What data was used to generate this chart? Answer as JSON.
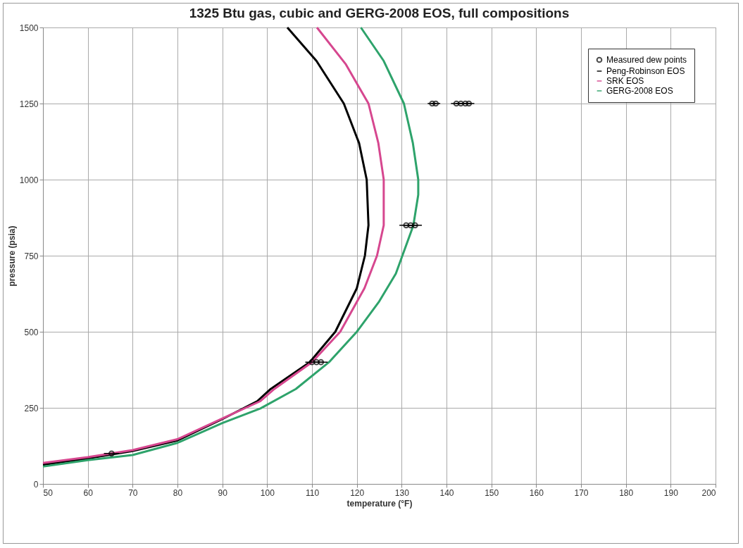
{
  "chart_data": {
    "type": "line",
    "title": "1325 Btu gas, cubic and GERG-2008 EOS, full compositions",
    "xlabel": "temperature (°F)",
    "ylabel": "pressure (psia)",
    "xlim": [
      50,
      200
    ],
    "xticks": [
      50,
      60,
      70,
      80,
      90,
      100,
      110,
      120,
      130,
      140,
      150,
      160,
      170,
      180,
      190,
      200
    ],
    "ylim": [
      0,
      1500
    ],
    "yticks": [
      0,
      250,
      500,
      750,
      1000,
      1250,
      1500
    ],
    "grid": true,
    "legend": "top right",
    "series": [
      {
        "name": "Measured dew points",
        "type": "scatter",
        "marker": "circle",
        "color": "#000000",
        "x": [
          65.3,
          110,
          111,
          112,
          131,
          132,
          133,
          136.8,
          137.6,
          142.2,
          143.2,
          144.2,
          145
        ],
        "values": [
          100,
          400,
          400,
          400,
          850,
          850,
          850,
          1250,
          1250,
          1250,
          1250,
          1250,
          1250
        ],
        "xerrors": [
          1.7,
          1.5,
          1.5,
          1.5,
          1.5,
          1.5,
          1.5,
          1,
          1,
          1.2,
          1.2,
          1.2,
          1.2
        ]
      },
      {
        "name": "Peng-Robinson EOS",
        "color": "#000000",
        "x": [
          50,
          60,
          70,
          80,
          90,
          97.8,
          100.8,
          109.5,
          115.2,
          120,
          121.8,
          122.6,
          122.2,
          120.5,
          117.1,
          111,
          104.5
        ],
        "values": [
          63,
          84,
          108,
          143,
          213,
          272,
          312,
          400,
          500,
          643,
          750,
          850,
          1000,
          1120,
          1250,
          1390,
          1500
        ]
      },
      {
        "name": "SRK EOS",
        "color": "#d6478f",
        "x": [
          50,
          60,
          70,
          80,
          90,
          98.5,
          101.6,
          110,
          116.3,
          121.7,
          124.5,
          126,
          126,
          124.8,
          122.6,
          117.5,
          111.1
        ],
        "values": [
          69,
          88,
          111,
          147,
          215,
          272,
          312,
          400,
          500,
          643,
          750,
          850,
          1000,
          1120,
          1250,
          1380,
          1500
        ]
      },
      {
        "name": "GERG-2008 EOS",
        "color": "#2ea36b",
        "x": [
          50,
          60,
          70,
          80,
          90,
          98.5,
          106.4,
          113.8,
          120,
          125,
          128.7,
          132.6,
          133.7,
          133.7,
          132.5,
          130.5,
          126,
          120.9
        ],
        "values": [
          57,
          78,
          95,
          135,
          200,
          248,
          312,
          400,
          500,
          600,
          691,
          849,
          950,
          1000,
          1120,
          1250,
          1390,
          1500
        ]
      }
    ]
  }
}
